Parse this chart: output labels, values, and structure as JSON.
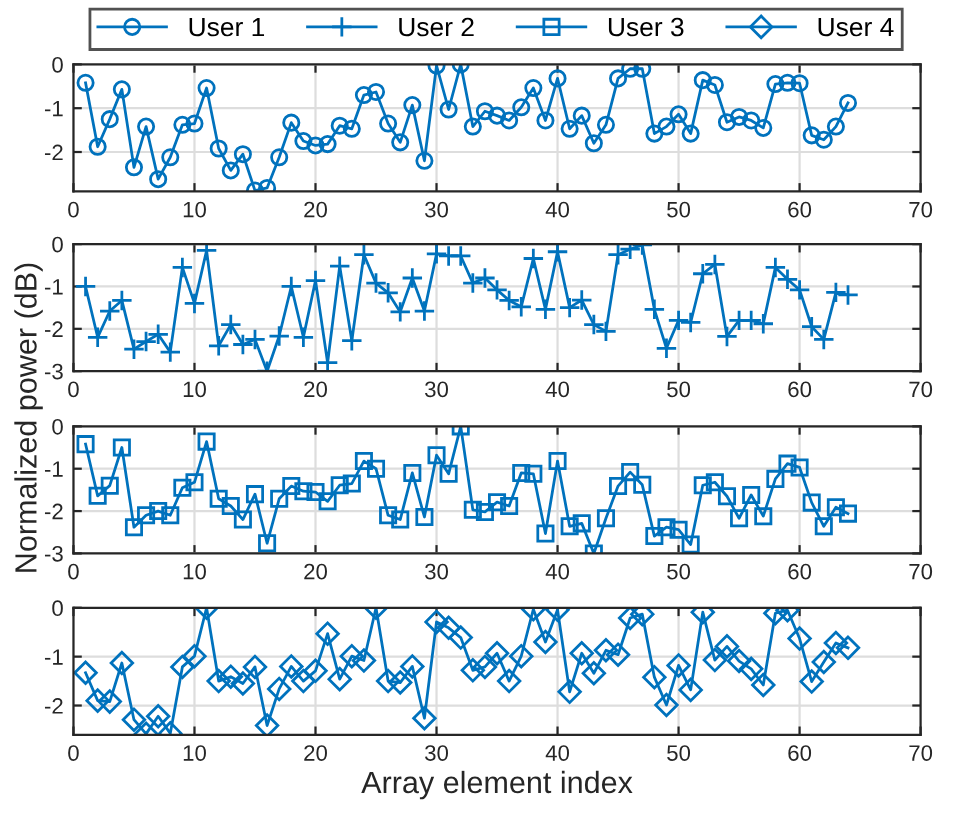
{
  "chart_data": [
    {
      "type": "line",
      "ylabel": "Normalized power (dB)",
      "legend": "top",
      "grid": true,
      "marker": "circle",
      "line_style": "solid",
      "xlim": [
        0,
        70
      ],
      "xticks": [
        0,
        10,
        20,
        30,
        40,
        50,
        60,
        70
      ],
      "ylim": [
        -2.9,
        0
      ],
      "yticks": [
        -2,
        -1,
        0
      ],
      "x": [
        1,
        2,
        3,
        4,
        5,
        6,
        7,
        8,
        9,
        10,
        11,
        12,
        13,
        14,
        15,
        16,
        17,
        18,
        19,
        20,
        21,
        22,
        23,
        24,
        25,
        26,
        27,
        28,
        29,
        30,
        31,
        32,
        33,
        34,
        35,
        36,
        37,
        38,
        39,
        40,
        41,
        42,
        43,
        44,
        45,
        46,
        47,
        48,
        49,
        50,
        51,
        52,
        53,
        54,
        55,
        56,
        57,
        58,
        59,
        60,
        61,
        62,
        63,
        64
      ],
      "series": [
        {
          "name": "User 1",
          "color": "#0072bd",
          "values": [
            -0.42,
            -1.88,
            -1.25,
            -0.57,
            -2.35,
            -1.42,
            -2.62,
            -2.12,
            -1.38,
            -1.35,
            -0.54,
            -1.92,
            -2.42,
            -2.05,
            -2.88,
            -2.82,
            -2.12,
            -1.33,
            -1.75,
            -1.85,
            -1.82,
            -1.4,
            -1.47,
            -0.7,
            -0.63,
            -1.35,
            -1.78,
            -0.93,
            -2.2,
            -0.03,
            -1.03,
            0,
            -1.42,
            -1.07,
            -1.17,
            -1.28,
            -0.98,
            -0.54,
            -1.28,
            -0.32,
            -1.47,
            -1.17,
            -1.8,
            -1.38,
            -0.32,
            -0.1,
            -0.1,
            -1.58,
            -1.42,
            -1.14,
            -1.58,
            -0.36,
            -0.47,
            -1.32,
            -1.2,
            -1.28,
            -1.45,
            -0.45,
            -0.42,
            -0.43,
            -1.62,
            -1.72,
            -1.42,
            -0.88
          ]
        }
      ]
    },
    {
      "type": "line",
      "grid": true,
      "marker": "cross",
      "line_style": "solid",
      "xlim": [
        0,
        70
      ],
      "xticks": [
        0,
        10,
        20,
        30,
        40,
        50,
        60,
        70
      ],
      "ylim": [
        -3,
        0
      ],
      "yticks": [
        -3,
        -2,
        -1,
        0
      ],
      "x": [
        1,
        2,
        3,
        4,
        5,
        6,
        7,
        8,
        9,
        10,
        11,
        12,
        13,
        14,
        15,
        16,
        17,
        18,
        19,
        20,
        21,
        22,
        23,
        24,
        25,
        26,
        27,
        28,
        29,
        30,
        31,
        32,
        33,
        34,
        35,
        36,
        37,
        38,
        39,
        40,
        41,
        42,
        43,
        44,
        45,
        46,
        47,
        48,
        49,
        50,
        51,
        52,
        53,
        54,
        55,
        56,
        57,
        58,
        59,
        60,
        61,
        62,
        63,
        64
      ],
      "series": [
        {
          "name": "User 2",
          "color": "#0072bd",
          "values": [
            -1.0,
            -2.2,
            -1.58,
            -1.33,
            -2.48,
            -2.3,
            -2.13,
            -2.55,
            -0.55,
            -1.4,
            -0.15,
            -2.4,
            -1.9,
            -2.37,
            -2.25,
            -3.0,
            -2.17,
            -1.0,
            -2.2,
            -0.86,
            -2.8,
            -0.52,
            -2.28,
            -0.25,
            -0.92,
            -1.15,
            -1.6,
            -0.8,
            -1.58,
            -0.23,
            -0.28,
            -0.28,
            -0.92,
            -0.8,
            -1.08,
            -1.33,
            -1.48,
            -0.34,
            -1.54,
            -0.18,
            -1.5,
            -1.32,
            -1.9,
            -2.06,
            -0.25,
            -0.12,
            -0.02,
            -1.54,
            -2.46,
            -1.8,
            -1.85,
            -0.7,
            -0.48,
            -2.18,
            -1.8,
            -1.8,
            -1.88,
            -0.55,
            -0.83,
            -1.08,
            -1.95,
            -2.25,
            -1.14,
            -1.2
          ]
        }
      ]
    },
    {
      "type": "line",
      "grid": true,
      "marker": "square",
      "line_style": "solid",
      "xlim": [
        0,
        70
      ],
      "xticks": [
        0,
        10,
        20,
        30,
        40,
        50,
        60,
        70
      ],
      "ylim": [
        -3,
        0
      ],
      "yticks": [
        -3,
        -2,
        -1,
        0
      ],
      "x": [
        1,
        2,
        3,
        4,
        5,
        6,
        7,
        8,
        9,
        10,
        11,
        12,
        13,
        14,
        15,
        16,
        17,
        18,
        19,
        20,
        21,
        22,
        23,
        24,
        25,
        26,
        27,
        28,
        29,
        30,
        31,
        32,
        33,
        34,
        35,
        36,
        37,
        38,
        39,
        40,
        41,
        42,
        43,
        44,
        45,
        46,
        47,
        48,
        49,
        50,
        51,
        52,
        53,
        54,
        55,
        56,
        57,
        58,
        59,
        60,
        61,
        62,
        63,
        64
      ],
      "series": [
        {
          "name": "User 3",
          "color": "#0072bd",
          "values": [
            -0.42,
            -1.64,
            -1.4,
            -0.5,
            -2.38,
            -2.1,
            -2.0,
            -2.1,
            -1.45,
            -1.32,
            -0.36,
            -1.71,
            -1.88,
            -2.2,
            -1.6,
            -2.76,
            -1.71,
            -1.41,
            -1.53,
            -1.55,
            -1.77,
            -1.39,
            -1.35,
            -0.82,
            -1.0,
            -2.1,
            -2.2,
            -1.1,
            -2.14,
            -0.68,
            -1.12,
            0,
            -1.97,
            -2.02,
            -1.79,
            -1.88,
            -1.1,
            -1.12,
            -2.53,
            -0.82,
            -2.36,
            -2.29,
            -3.0,
            -2.17,
            -1.41,
            -1.08,
            -1.38,
            -2.59,
            -2.38,
            -2.44,
            -2.79,
            -1.39,
            -1.32,
            -1.65,
            -2.17,
            -1.62,
            -2.12,
            -1.24,
            -0.88,
            -0.97,
            -1.8,
            -2.36,
            -1.91,
            -2.06
          ]
        }
      ]
    },
    {
      "type": "line",
      "xlabel": "Array element index",
      "grid": true,
      "marker": "diamond",
      "line_style": "solid",
      "xlim": [
        0,
        70
      ],
      "xticks": [
        0,
        10,
        20,
        30,
        40,
        50,
        60,
        70
      ],
      "ylim": [
        -2.6,
        0
      ],
      "yticks": [
        -2,
        -1,
        0
      ],
      "x": [
        1,
        2,
        3,
        4,
        5,
        6,
        7,
        8,
        9,
        10,
        11,
        12,
        13,
        14,
        15,
        16,
        17,
        18,
        19,
        20,
        21,
        22,
        23,
        24,
        25,
        26,
        27,
        28,
        29,
        30,
        31,
        32,
        33,
        34,
        35,
        36,
        37,
        38,
        39,
        40,
        41,
        42,
        43,
        44,
        45,
        46,
        47,
        48,
        49,
        50,
        51,
        52,
        53,
        54,
        55,
        56,
        57,
        58,
        59,
        60,
        61,
        62,
        63,
        64
      ],
      "series": [
        {
          "name": "User 4",
          "color": "#0072bd",
          "values": [
            -1.33,
            -1.9,
            -1.92,
            -1.13,
            -2.29,
            -2.58,
            -2.22,
            -2.57,
            -1.21,
            -0.99,
            0,
            -1.5,
            -1.41,
            -1.55,
            -1.21,
            -2.41,
            -1.66,
            -1.2,
            -1.5,
            -1.29,
            -0.53,
            -1.46,
            -0.99,
            -1.08,
            0,
            -1.5,
            -1.53,
            -1.2,
            -2.26,
            -0.29,
            -0.41,
            -0.61,
            -1.28,
            -1.21,
            -0.93,
            -1.5,
            -0.99,
            -0.03,
            -0.7,
            -0.04,
            -1.72,
            -0.93,
            -1.34,
            -0.87,
            -0.96,
            -0.21,
            -0.13,
            -1.42,
            -1.99,
            -1.18,
            -1.68,
            -0.09,
            -1.07,
            -0.79,
            -1.09,
            -1.25,
            -1.58,
            -0.11,
            -0.05,
            -0.63,
            -1.51,
            -1.11,
            -0.72,
            -0.82
          ]
        }
      ]
    }
  ]
}
